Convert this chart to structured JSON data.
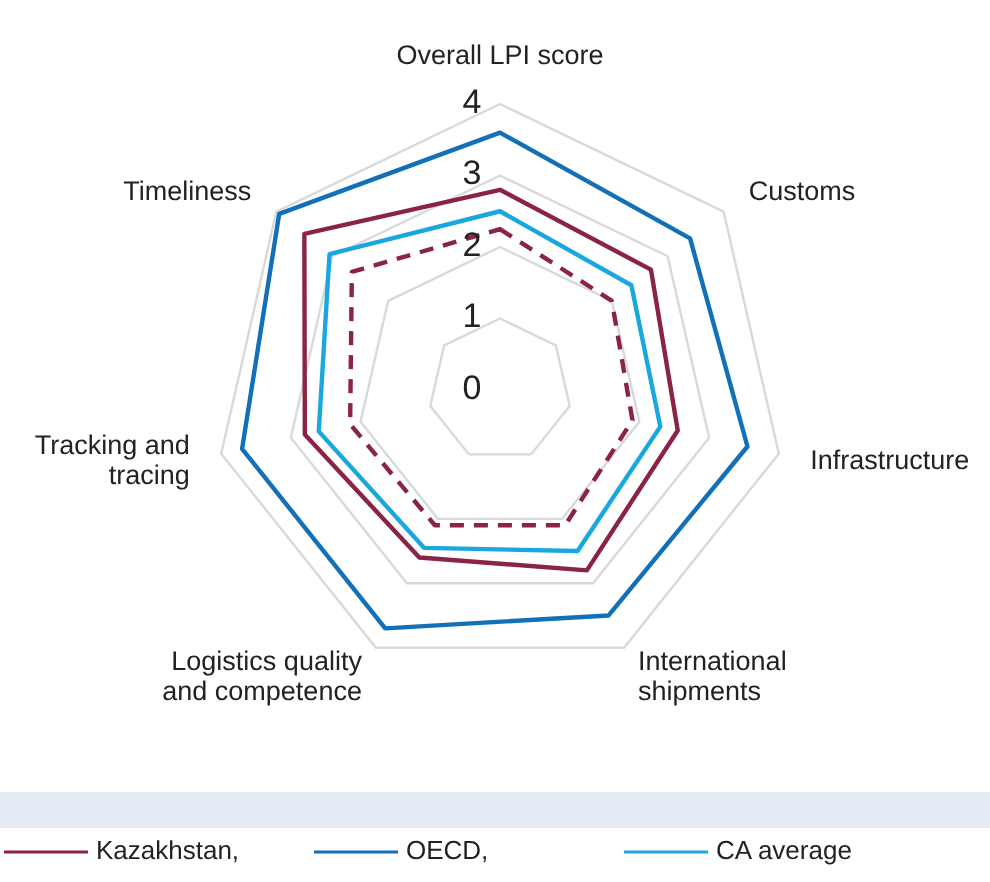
{
  "chart_data": {
    "type": "radar",
    "categories": [
      "Overall LPI score",
      "Customs",
      "Infrastructure",
      "International shipments",
      "Logistics quality and competence",
      "Tracking and tracing",
      "Timeliness"
    ],
    "ylim": [
      0,
      4
    ],
    "yticks": [
      0,
      1,
      2,
      3,
      4
    ],
    "grid": true,
    "legend": "bottom",
    "series": [
      {
        "name": "Kazakhstan,",
        "color": "#8b2346",
        "values": [
          2.8,
          2.7,
          2.55,
          2.8,
          2.6,
          2.8,
          3.5
        ]
      },
      {
        "name": "OECD,",
        "color": "#1170b8",
        "values": [
          3.6,
          3.4,
          3.55,
          3.5,
          3.7,
          3.7,
          3.95
        ]
      },
      {
        "name": "CA average",
        "color": "#1aa7e0",
        "values": [
          2.5,
          2.35,
          2.3,
          2.5,
          2.45,
          2.6,
          3.05
        ]
      },
      {
        "color": "#8b2346",
        "line_style": "dashed",
        "values": [
          2.25,
          2.0,
          1.9,
          2.1,
          2.1,
          2.15,
          2.65
        ]
      }
    ]
  }
}
